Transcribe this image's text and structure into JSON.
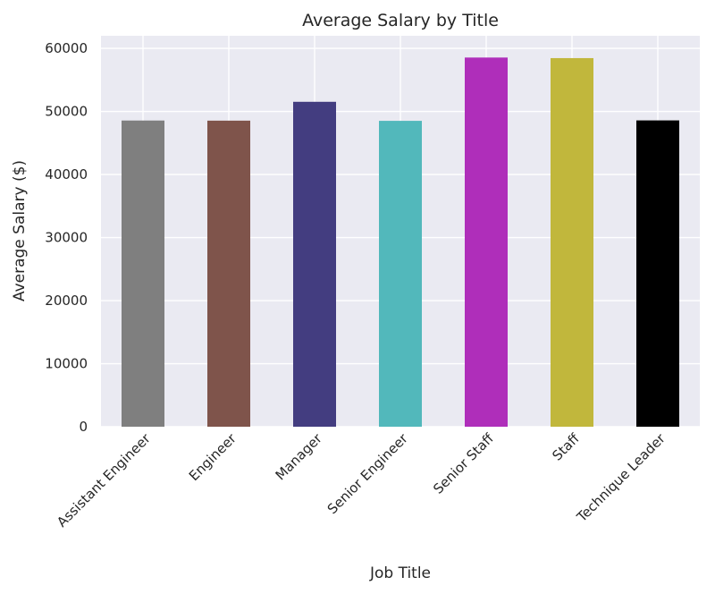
{
  "chart_data": {
    "type": "bar",
    "title": "Average Salary by Title",
    "xlabel": "Job Title",
    "ylabel": "Average Salary ($)",
    "categories": [
      "Assistant Engineer",
      "Engineer",
      "Manager",
      "Senior Engineer",
      "Senior Staff",
      "Staff",
      "Technique Leader"
    ],
    "values": [
      48560,
      48540,
      51530,
      48510,
      58550,
      58460,
      48580
    ],
    "colors": [
      "#7f7f7f",
      "#7f544b",
      "#433d80",
      "#52b8bb",
      "#af2eba",
      "#c1b73c",
      "#000000"
    ],
    "ylim": [
      0,
      62000
    ],
    "yticks": [
      0,
      10000,
      20000,
      30000,
      40000,
      50000,
      60000
    ],
    "grid": true,
    "legend": "none",
    "background": "#eaeaf2"
  }
}
